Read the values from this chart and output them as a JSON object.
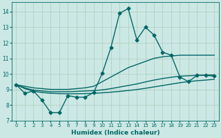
{
  "xlabel": "Humidex (Indice chaleur)",
  "xlim": [
    -0.5,
    23.5
  ],
  "ylim": [
    7,
    14.6
  ],
  "yticks": [
    7,
    8,
    9,
    10,
    11,
    12,
    13,
    14
  ],
  "xticks": [
    0,
    1,
    2,
    3,
    4,
    5,
    6,
    7,
    8,
    9,
    10,
    11,
    12,
    13,
    14,
    15,
    16,
    17,
    18,
    19,
    20,
    21,
    22,
    23
  ],
  "background_color": "#cce8e4",
  "grid_color": "#aaccbb",
  "line_color": "#006666",
  "series": [
    {
      "x": [
        0,
        1,
        2,
        3,
        4,
        5,
        6,
        7,
        8,
        9,
        10,
        11,
        12,
        13,
        14,
        15,
        16,
        17,
        18,
        19,
        20,
        21,
        22,
        23
      ],
      "y": [
        9.3,
        8.75,
        8.9,
        8.3,
        7.5,
        7.5,
        8.6,
        8.5,
        8.5,
        8.8,
        10.05,
        11.7,
        13.9,
        14.2,
        12.2,
        13.0,
        12.5,
        11.4,
        11.2,
        9.8,
        9.5,
        9.9,
        9.9,
        9.85
      ],
      "marker": "D",
      "markersize": 2.5,
      "linewidth": 1.0
    },
    {
      "x": [
        0,
        1,
        2,
        3,
        4,
        5,
        6,
        7,
        8,
        9,
        10,
        11,
        12,
        13,
        14,
        15,
        16,
        17,
        18,
        19,
        20,
        21,
        22,
        23
      ],
      "y": [
        9.3,
        9.2,
        9.1,
        9.05,
        9.0,
        9.0,
        9.0,
        9.05,
        9.1,
        9.2,
        9.5,
        9.8,
        10.1,
        10.4,
        10.6,
        10.8,
        11.0,
        11.1,
        11.15,
        11.2,
        11.2,
        11.2,
        11.2,
        11.2
      ],
      "marker": "None",
      "markersize": 0,
      "linewidth": 1.0
    },
    {
      "x": [
        0,
        1,
        2,
        3,
        4,
        5,
        6,
        7,
        8,
        9,
        10,
        11,
        12,
        13,
        14,
        15,
        16,
        17,
        18,
        19,
        20,
        21,
        22,
        23
      ],
      "y": [
        9.3,
        9.1,
        8.95,
        8.9,
        8.85,
        8.85,
        8.85,
        8.87,
        8.9,
        8.92,
        8.97,
        9.05,
        9.15,
        9.25,
        9.35,
        9.48,
        9.6,
        9.7,
        9.78,
        9.85,
        9.88,
        9.9,
        9.92,
        9.93
      ],
      "marker": "None",
      "markersize": 0,
      "linewidth": 1.0
    },
    {
      "x": [
        0,
        1,
        2,
        3,
        4,
        5,
        6,
        7,
        8,
        9,
        10,
        11,
        12,
        13,
        14,
        15,
        16,
        17,
        18,
        19,
        20,
        21,
        22,
        23
      ],
      "y": [
        9.3,
        9.05,
        8.88,
        8.8,
        8.75,
        8.73,
        8.72,
        8.72,
        8.73,
        8.75,
        8.78,
        8.82,
        8.87,
        8.93,
        8.99,
        9.07,
        9.16,
        9.25,
        9.34,
        9.43,
        9.5,
        9.56,
        9.6,
        9.65
      ],
      "marker": "None",
      "markersize": 0,
      "linewidth": 1.0
    }
  ]
}
